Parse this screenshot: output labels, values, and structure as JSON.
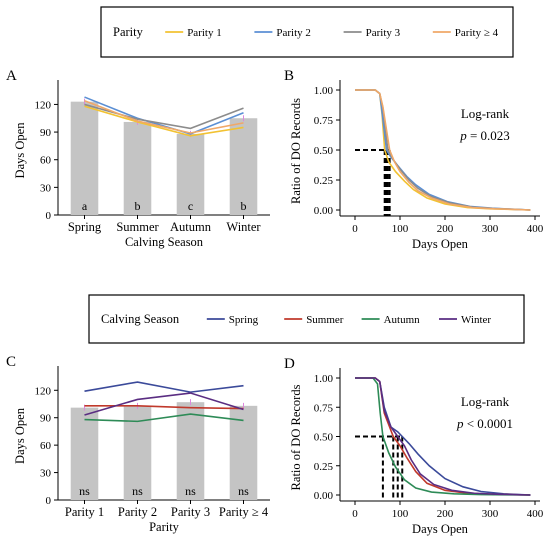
{
  "chart_data": [
    {
      "panel": "A",
      "type": "bar",
      "xlabel": "Calving Season",
      "ylabel": "Days Open",
      "ylim": [
        0,
        140
      ],
      "yticks": [
        0,
        30,
        60,
        90,
        120
      ],
      "categories": [
        "Spring",
        "Summer",
        "Autumn",
        "Winter"
      ],
      "values": [
        123,
        101,
        88,
        105
      ],
      "bar_labels": [
        "a",
        "b",
        "c",
        "b"
      ],
      "legend": {
        "title": "Parity",
        "placement": "top"
      },
      "series": [
        {
          "name": "Parity 1",
          "color": "#f2c232",
          "values": [
            118,
            101,
            86,
            95
          ]
        },
        {
          "name": "Parity 2",
          "color": "#5b8fd4",
          "values": [
            128,
            105,
            88,
            111
          ]
        },
        {
          "name": "Parity 3",
          "color": "#8c8c8c",
          "values": [
            120,
            104,
            94,
            116
          ]
        },
        {
          "name": "Parity ≥ 4",
          "color": "#f0a868",
          "values": [
            124,
            102,
            89,
            100
          ]
        }
      ]
    },
    {
      "panel": "B",
      "type": "line",
      "xlabel": "Days Open",
      "ylabel": "Ratio of DO Records",
      "xlim": [
        0,
        400
      ],
      "ylim": [
        0,
        1
      ],
      "xticks": [
        0,
        100,
        200,
        300,
        400
      ],
      "yticks": [
        0,
        0.25,
        0.5,
        0.75,
        1
      ],
      "annotation": {
        "test": "Log-rank",
        "p_symbol": "p",
        "p_text": " = 0.023"
      },
      "medians": [
        66,
        70,
        73,
        77
      ],
      "series": [
        {
          "name": "Parity 1",
          "color": "#f2c232",
          "x": [
            0,
            45,
            55,
            60,
            66,
            75,
            90,
            110,
            130,
            160,
            200,
            250,
            300,
            350,
            390
          ],
          "y": [
            1,
            1,
            0.97,
            0.8,
            0.5,
            0.4,
            0.32,
            0.24,
            0.17,
            0.1,
            0.05,
            0.02,
            0.01,
            0.005,
            0
          ]
        },
        {
          "name": "Parity 2",
          "color": "#5b8fd4",
          "x": [
            0,
            45,
            55,
            60,
            70,
            80,
            95,
            115,
            135,
            165,
            205,
            255,
            305,
            350,
            390
          ],
          "y": [
            1,
            1,
            0.97,
            0.82,
            0.5,
            0.44,
            0.37,
            0.28,
            0.21,
            0.13,
            0.07,
            0.03,
            0.015,
            0.007,
            0
          ]
        },
        {
          "name": "Parity 3",
          "color": "#8c8c8c",
          "x": [
            0,
            45,
            55,
            62,
            73,
            85,
            100,
            120,
            140,
            170,
            210,
            260,
            310,
            355,
            390
          ],
          "y": [
            1,
            1,
            0.97,
            0.85,
            0.5,
            0.42,
            0.34,
            0.25,
            0.18,
            0.11,
            0.06,
            0.025,
            0.012,
            0.006,
            0
          ]
        },
        {
          "name": "Parity ≥ 4",
          "color": "#f0a868",
          "x": [
            0,
            45,
            55,
            62,
            77,
            88,
            100,
            120,
            140,
            170,
            210,
            260,
            310,
            355,
            390
          ],
          "y": [
            1,
            1,
            0.97,
            0.86,
            0.5,
            0.4,
            0.32,
            0.23,
            0.16,
            0.1,
            0.05,
            0.02,
            0.01,
            0.005,
            0
          ]
        }
      ]
    },
    {
      "panel": "C",
      "type": "bar",
      "xlabel": "Parity",
      "ylabel": "Days Open",
      "ylim": [
        0,
        140
      ],
      "yticks": [
        0,
        30,
        60,
        90,
        120
      ],
      "categories": [
        "Parity 1",
        "Parity 2",
        "Parity 3",
        "Parity ≥ 4"
      ],
      "values": [
        101,
        103,
        107,
        103
      ],
      "bar_labels": [
        "ns",
        "ns",
        "ns",
        "ns"
      ],
      "legend": {
        "title": "Calving Season",
        "placement": "top"
      },
      "series": [
        {
          "name": "Spring",
          "color": "#3b4a9a",
          "values": [
            119,
            129,
            118,
            125
          ]
        },
        {
          "name": "Summer",
          "color": "#c0392b",
          "values": [
            103,
            103,
            101,
            100
          ]
        },
        {
          "name": "Autumn",
          "color": "#2e8b57",
          "values": [
            88,
            86,
            94,
            87
          ]
        },
        {
          "name": "Winter",
          "color": "#5a2d82",
          "values": [
            93,
            110,
            117,
            99
          ]
        }
      ]
    },
    {
      "panel": "D",
      "type": "line",
      "xlabel": "Days Open",
      "ylabel": "Ratio of DO Records",
      "xlim": [
        0,
        400
      ],
      "ylim": [
        0,
        1
      ],
      "xticks": [
        0,
        100,
        200,
        300,
        400
      ],
      "yticks": [
        0,
        0.25,
        0.5,
        0.75,
        1
      ],
      "annotation": {
        "test": "Log-rank",
        "p_symbol": "p",
        "p_text": " < 0.0001"
      },
      "medians": [
        62,
        85,
        95,
        105
      ],
      "series": [
        {
          "name": "Spring",
          "color": "#3b4a9a",
          "x": [
            0,
            45,
            55,
            65,
            80,
            95,
            105,
            120,
            140,
            165,
            200,
            240,
            280,
            330,
            390
          ],
          "y": [
            1,
            1,
            0.97,
            0.75,
            0.58,
            0.54,
            0.5,
            0.44,
            0.35,
            0.25,
            0.14,
            0.07,
            0.03,
            0.01,
            0
          ]
        },
        {
          "name": "Summer",
          "color": "#c0392b",
          "x": [
            0,
            45,
            55,
            65,
            85,
            100,
            115,
            135,
            160,
            200,
            250,
            300,
            350,
            390
          ],
          "y": [
            1,
            1,
            0.97,
            0.7,
            0.5,
            0.42,
            0.32,
            0.2,
            0.1,
            0.04,
            0.015,
            0.007,
            0.003,
            0
          ]
        },
        {
          "name": "Autumn",
          "color": "#2e8b57",
          "x": [
            0,
            40,
            50,
            56,
            62,
            75,
            90,
            110,
            135,
            170,
            220,
            280,
            340,
            390
          ],
          "y": [
            1,
            1,
            0.95,
            0.7,
            0.5,
            0.36,
            0.24,
            0.13,
            0.06,
            0.025,
            0.01,
            0.004,
            0.002,
            0
          ]
        },
        {
          "name": "Winter",
          "color": "#5a2d82",
          "x": [
            0,
            45,
            55,
            65,
            80,
            95,
            110,
            125,
            145,
            175,
            215,
            265,
            320,
            370,
            390
          ],
          "y": [
            1,
            1,
            0.97,
            0.72,
            0.58,
            0.5,
            0.42,
            0.3,
            0.18,
            0.09,
            0.04,
            0.015,
            0.006,
            0.002,
            0
          ]
        }
      ]
    }
  ]
}
